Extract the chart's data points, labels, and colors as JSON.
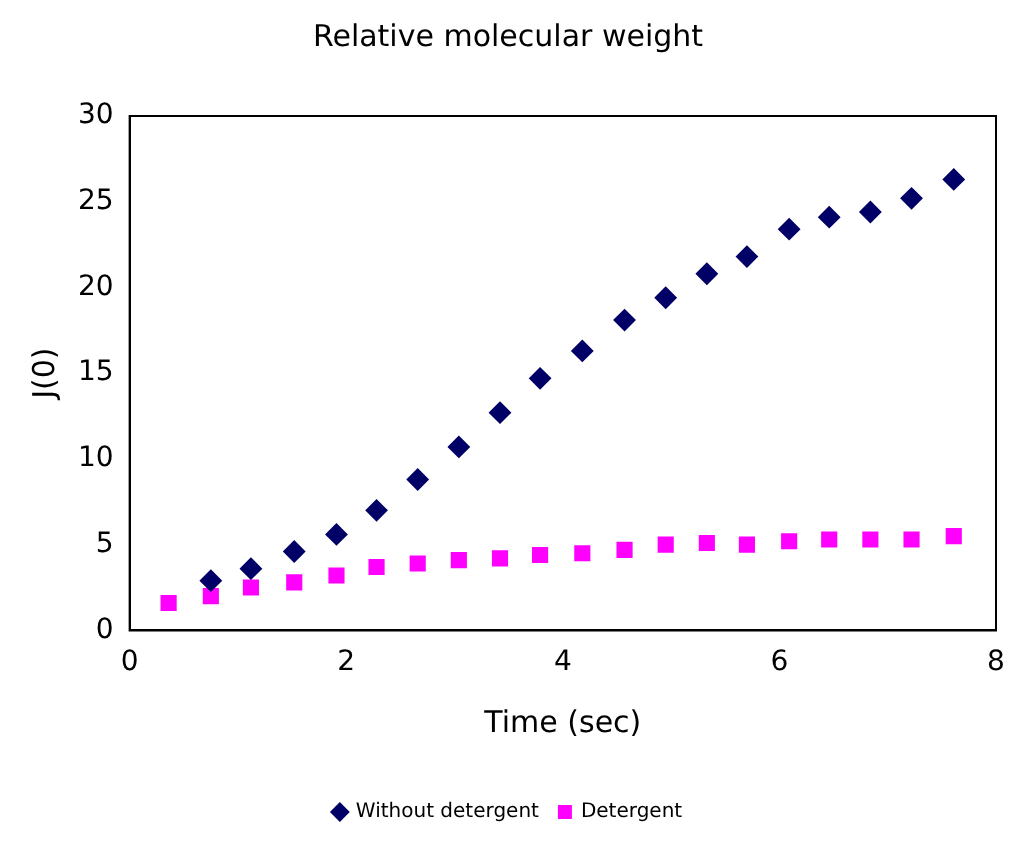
{
  "chart_data": {
    "type": "scatter",
    "title": "Relative molecular weight",
    "xlabel": "Time (sec)",
    "ylabel": "J(0)",
    "xlim": [
      0,
      8
    ],
    "xticks": [
      0,
      2,
      4,
      6,
      8
    ],
    "ylim": [
      0,
      30
    ],
    "yticks": [
      0,
      5,
      10,
      15,
      20,
      25,
      30
    ],
    "grid": false,
    "legend": "bottom",
    "series": [
      {
        "name": "Without detergent",
        "color": "#000066",
        "marker": "diamond",
        "x": [
          0.75,
          1.12,
          1.52,
          1.91,
          2.28,
          2.66,
          3.04,
          3.42,
          3.79,
          4.18,
          4.57,
          4.95,
          5.33,
          5.7,
          6.09,
          6.46,
          6.84,
          7.22,
          7.61
        ],
        "values": [
          2.9,
          3.6,
          4.6,
          5.6,
          7.0,
          8.8,
          10.7,
          12.7,
          14.7,
          16.3,
          18.1,
          19.4,
          20.8,
          21.8,
          23.4,
          24.1,
          24.4,
          25.2,
          26.3
        ]
      },
      {
        "name": "Detergent",
        "color": "#ff00ff",
        "marker": "square",
        "x": [
          0.36,
          0.75,
          1.12,
          1.52,
          1.91,
          2.28,
          2.66,
          3.04,
          3.42,
          3.79,
          4.18,
          4.57,
          4.95,
          5.33,
          5.7,
          6.09,
          6.46,
          6.84,
          7.22,
          7.61
        ],
        "values": [
          1.6,
          2.0,
          2.5,
          2.8,
          3.2,
          3.7,
          3.9,
          4.1,
          4.2,
          4.4,
          4.5,
          4.7,
          5.0,
          5.1,
          5.0,
          5.2,
          5.3,
          5.3,
          5.3,
          5.5
        ]
      }
    ]
  }
}
